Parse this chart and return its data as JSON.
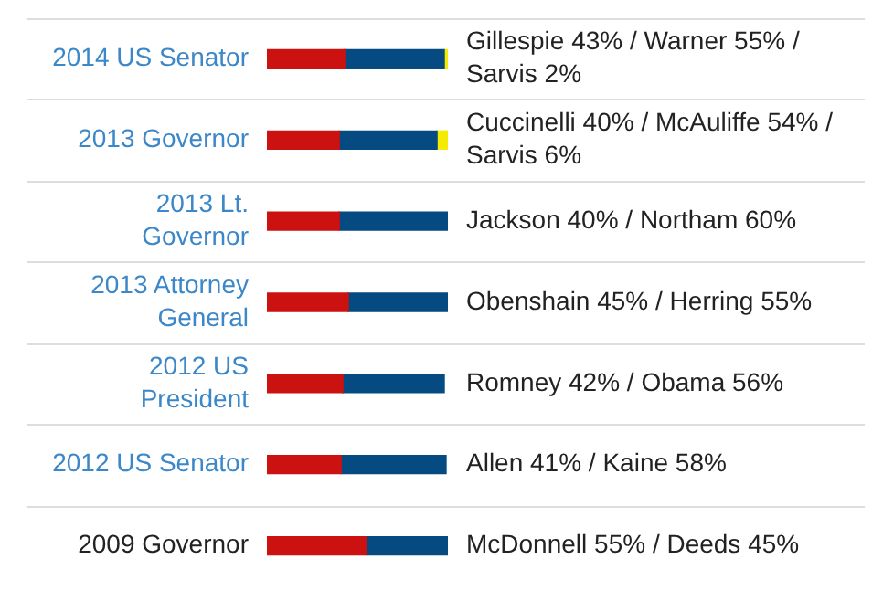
{
  "chart_data": {
    "type": "bar",
    "orientation": "horizontal",
    "stacked": true,
    "categories": [
      "2014 US Senator",
      "2013 Governor",
      "2013 Lt. Governor",
      "2013 Attorney General",
      "2012 US President",
      "2012 US Senator",
      "2009 Governor"
    ],
    "series": [
      {
        "color": "#cc1111",
        "values": [
          43,
          40,
          40,
          45,
          42,
          41,
          55
        ],
        "value_labels": [
          "Gillespie 43% /",
          "Cuccinelli 40% /",
          "Jackson 40% /",
          "Obenshain 45% /",
          "Romney 42% /",
          "Allen 41% /",
          "McDonnell 55% /"
        ]
      },
      {
        "color": "#054a80",
        "values": [
          55,
          54,
          60,
          55,
          56,
          58,
          45
        ],
        "value_labels": [
          "Warner 55% /",
          "McAuliffe 54% /",
          "Northam 60%",
          "Herring 55%",
          "Obama 56%",
          "Kaine 58%",
          "Deeds 45%"
        ]
      },
      {
        "color": "#f5eb00",
        "values": [
          2,
          6,
          null,
          null,
          null,
          null,
          null
        ],
        "value_labels": [
          "Sarvis 2%",
          "Sarvis 6%",
          null,
          null,
          null,
          null,
          null
        ]
      }
    ],
    "grid": "y",
    "legend": false
  }
}
